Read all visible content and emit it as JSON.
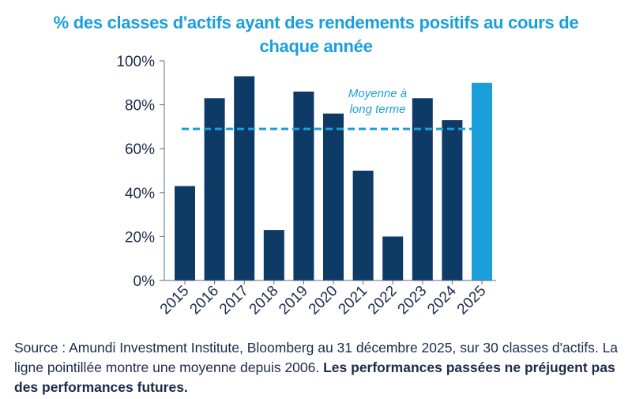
{
  "chart_data": {
    "type": "bar",
    "title_line1": "% des classes d'actifs ayant des rendements positifs au cours de",
    "title_line2": "chaque année",
    "categories": [
      "2015",
      "2016",
      "2017",
      "2018",
      "2019",
      "2020",
      "2021",
      "2022",
      "2023",
      "2024",
      "2025"
    ],
    "values": [
      43,
      83,
      93,
      23,
      86,
      76,
      50,
      20,
      83,
      73,
      90
    ],
    "highlight_category": "2025",
    "ylim": [
      0,
      100
    ],
    "yticks": [
      0,
      20,
      40,
      60,
      80,
      100
    ],
    "ytick_labels": [
      "0%",
      "20%",
      "40%",
      "60%",
      "80%",
      "100%"
    ],
    "xlabel": "",
    "ylabel": "",
    "grid": false,
    "reference_line": {
      "value": 69,
      "label_line1": "Moyenne à",
      "label_line2": "long terme",
      "style": "dashed"
    },
    "colors": {
      "bar": "#0e3a66",
      "highlight_bar": "#1a9fdb",
      "reference_line": "#1a9fdb",
      "axis_text": "#1c2b4a",
      "title": "#1a9fdb"
    }
  },
  "source": {
    "text": "Source : Amundi Investment Institute, Bloomberg au 31 décembre 2025, sur 30 classes d'actifs. La ligne pointillée montre une moyenne depuis 2006. ",
    "bold_text": "Les performances passées ne préjugent pas des performances futures."
  }
}
